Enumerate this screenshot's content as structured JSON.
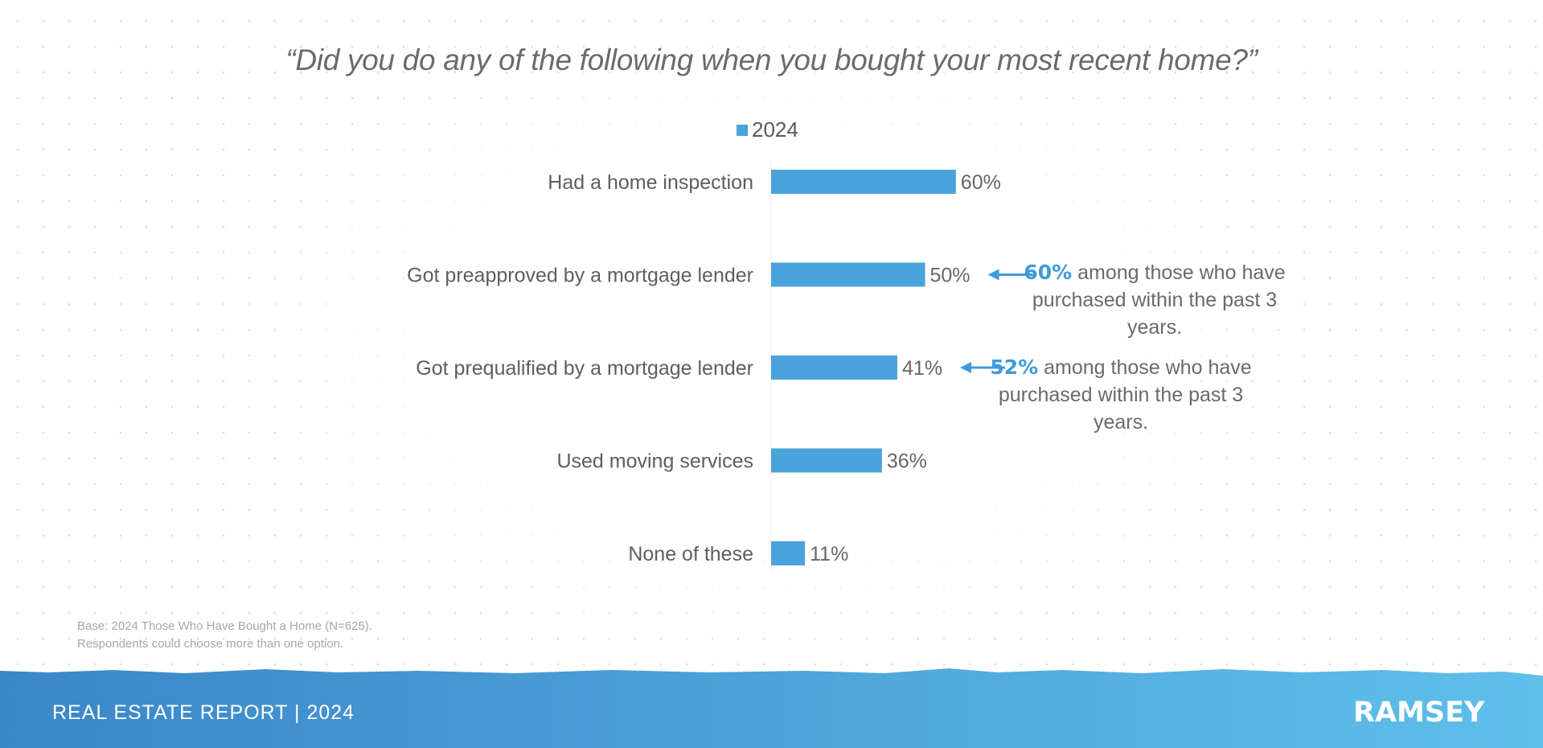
{
  "chart_data": {
    "type": "bar",
    "orientation": "horizontal",
    "title": "“Did you do any of the following when you bought your most recent home?”",
    "categories": [
      "Had a home inspection",
      "Got preapproved by a mortgage lender",
      "Got prequalified by a mortgage lender",
      "Used moving services",
      "None of these"
    ],
    "series": [
      {
        "name": "2024",
        "values": [
          60,
          50,
          41,
          36,
          11
        ]
      }
    ],
    "data_labels": [
      "60%",
      "50%",
      "41%",
      "36%",
      "11%"
    ],
    "xlim": [
      0,
      100
    ],
    "grid": false,
    "legend": "top-center",
    "annotations": [
      {
        "category": "Got preapproved by a mortgage lender",
        "highlight": "60%",
        "text": "among those who have purchased within the past 3 years."
      },
      {
        "category": "Got prequalified by a mortgage lender",
        "highlight": "52%",
        "text": "among those who have purchased within the past 3 years."
      }
    ]
  },
  "colors": {
    "bar": "#4aa3db",
    "accent": "#3f9bd8",
    "text": "#6b6b6b",
    "footer_start": "#3b86c8",
    "footer_end": "#5fc0ea"
  },
  "footnote": {
    "line1": "Base: 2024 Those Who Have Bought a Home (N=625).",
    "line2": "Respondents could choose more than one option."
  },
  "footer": {
    "report": "REAL ESTATE REPORT | 2024",
    "brand": "RAMSEY"
  }
}
